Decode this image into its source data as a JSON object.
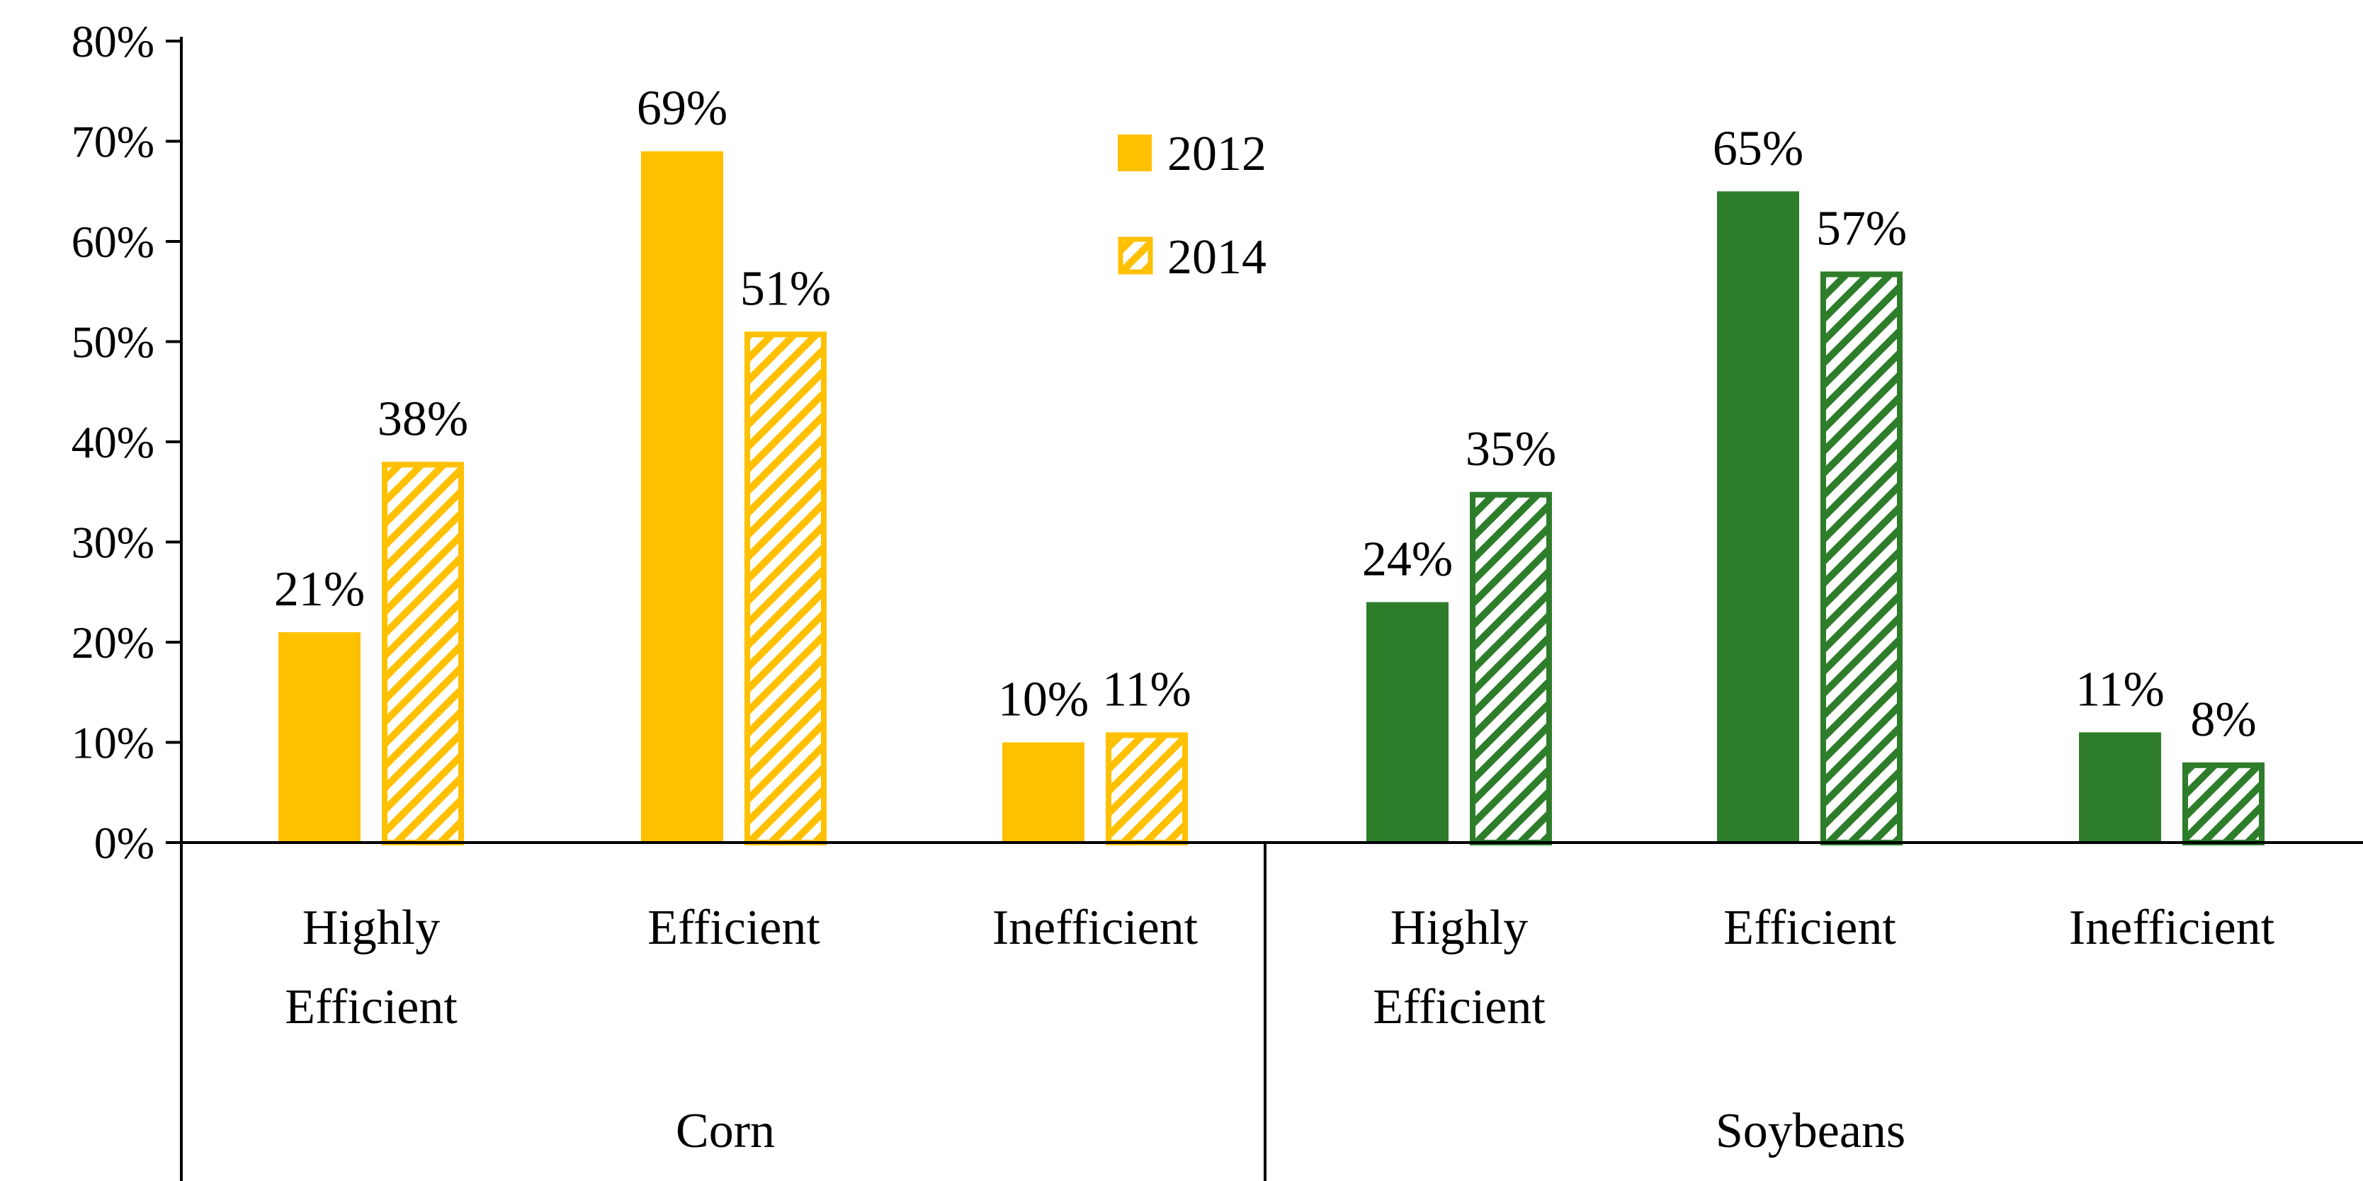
{
  "chart_data": {
    "type": "bar",
    "title": "",
    "xlabel": "",
    "ylabel": "",
    "ylim": [
      0,
      80
    ],
    "yticks": [
      0,
      10,
      20,
      30,
      40,
      50,
      60,
      70,
      80
    ],
    "ytick_labels": [
      "0%",
      "10%",
      "20%",
      "30%",
      "40%",
      "50%",
      "60%",
      "70%",
      "80%"
    ],
    "grid": false,
    "legend_position": "top-center",
    "groups": [
      {
        "name": "Corn",
        "color": "#FFC000",
        "categories": [
          {
            "label_lines": [
              "Highly",
              "Efficient"
            ],
            "values": [
              21,
              38
            ],
            "data_labels": [
              "21%",
              "38%"
            ]
          },
          {
            "label_lines": [
              "Efficient"
            ],
            "values": [
              69,
              51
            ],
            "data_labels": [
              "69%",
              "51%"
            ]
          },
          {
            "label_lines": [
              "Inefficient"
            ],
            "values": [
              10,
              11
            ],
            "data_labels": [
              "10%",
              "11%"
            ]
          }
        ]
      },
      {
        "name": "Soybeans",
        "color": "#2E7D2A",
        "categories": [
          {
            "label_lines": [
              "Highly",
              "Efficient"
            ],
            "values": [
              24,
              35
            ],
            "data_labels": [
              "24%",
              "35%"
            ]
          },
          {
            "label_lines": [
              "Efficient"
            ],
            "values": [
              65,
              57
            ],
            "data_labels": [
              "65%",
              "57%"
            ]
          },
          {
            "label_lines": [
              "Inefficient"
            ],
            "values": [
              11,
              8
            ],
            "data_labels": [
              "11%",
              "8%"
            ]
          }
        ]
      }
    ],
    "series": [
      {
        "name": "2012",
        "style": "solid"
      },
      {
        "name": "2014",
        "style": "hatched"
      }
    ]
  }
}
